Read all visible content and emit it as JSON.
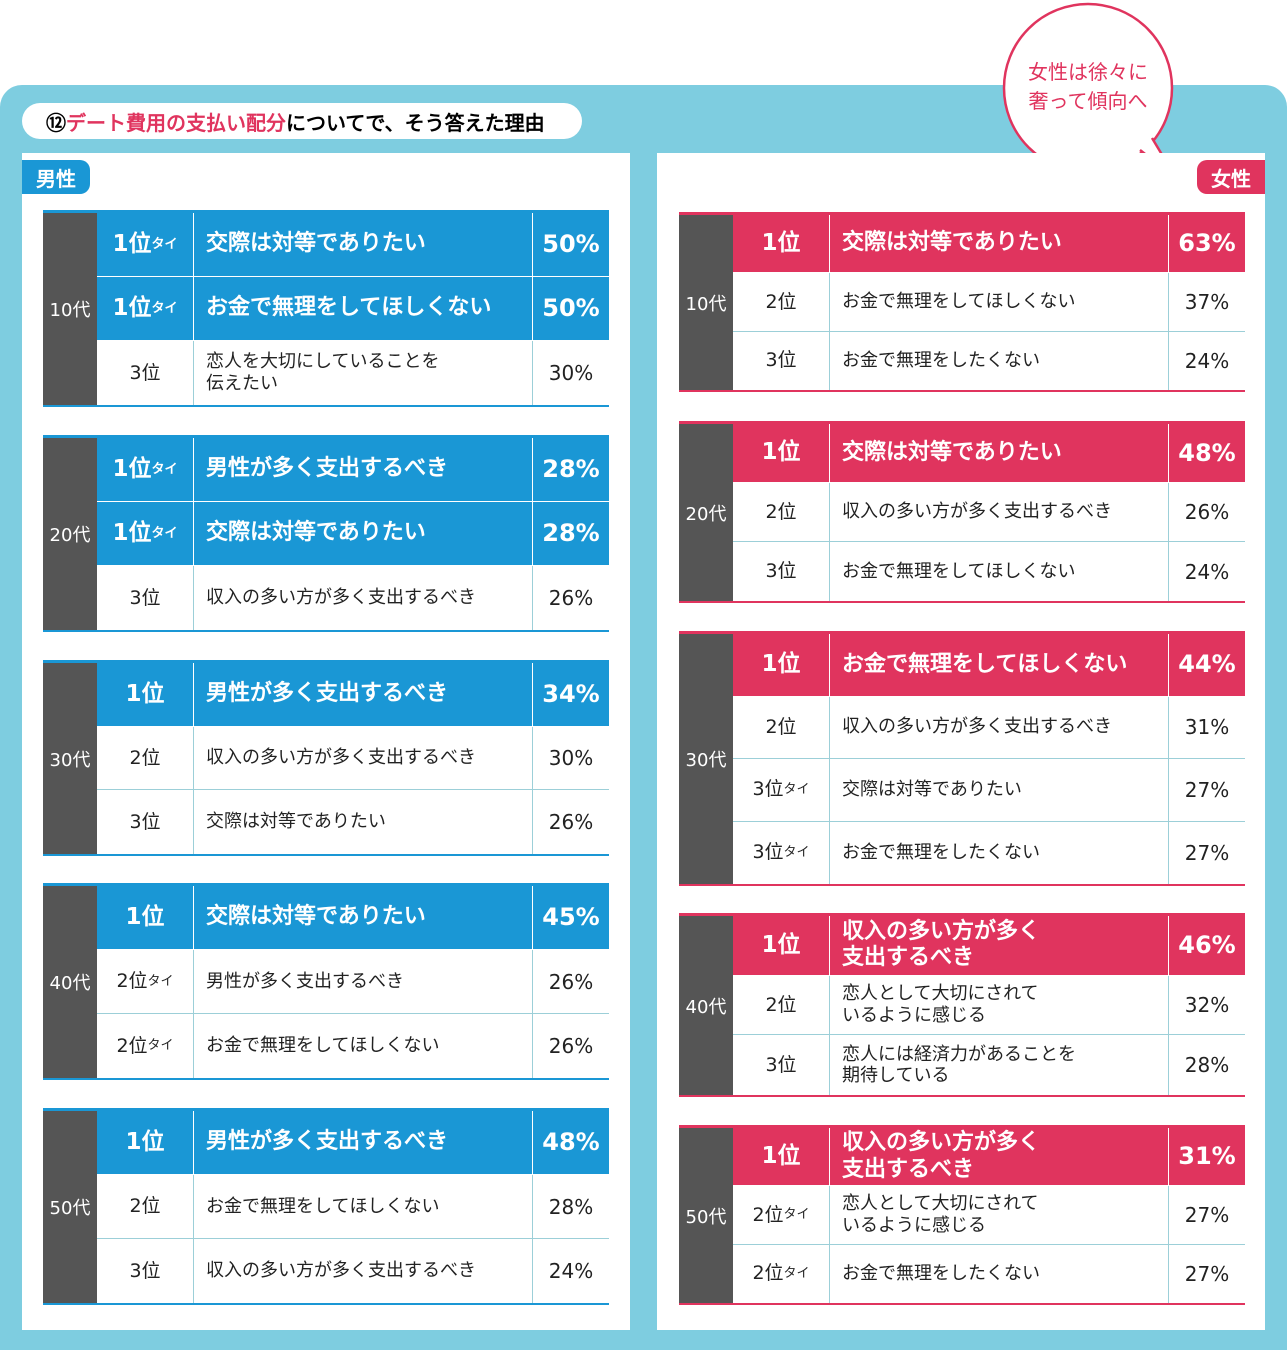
{
  "header": {
    "number": "⑫",
    "title_highlight": "デート費用の支払い配分",
    "title_rest": "についてで、そう答えた理由"
  },
  "callout": "女性は徐々に\n奢って傾向へ",
  "panels": [
    {
      "label": "男性",
      "groups": [
        {
          "age": "10代",
          "rows": [
            {
              "rank": "1位",
              "tie": "タイ",
              "reason": "交際は対等でありたい",
              "pct": "50%",
              "top": true
            },
            {
              "rank": "1位",
              "tie": "タイ",
              "reason": "お金で無理をしてほしくない",
              "pct": "50%",
              "top": true
            },
            {
              "rank": "3位",
              "reason": "恋人を大切にしていることを\n伝えたい",
              "pct": "30%"
            }
          ]
        },
        {
          "age": "20代",
          "rows": [
            {
              "rank": "1位",
              "tie": "タイ",
              "reason": "男性が多く支出するべき",
              "pct": "28%",
              "top": true
            },
            {
              "rank": "1位",
              "tie": "タイ",
              "reason": "交際は対等でありたい",
              "pct": "28%",
              "top": true
            },
            {
              "rank": "3位",
              "reason": "収入の多い方が多く支出するべき",
              "pct": "26%"
            }
          ]
        },
        {
          "age": "30代",
          "rows": [
            {
              "rank": "1位",
              "reason": "男性が多く支出するべき",
              "pct": "34%",
              "top": true
            },
            {
              "rank": "2位",
              "reason": "収入の多い方が多く支出するべき",
              "pct": "30%"
            },
            {
              "rank": "3位",
              "reason": "交際は対等でありたい",
              "pct": "26%"
            }
          ]
        },
        {
          "age": "40代",
          "rows": [
            {
              "rank": "1位",
              "reason": "交際は対等でありたい",
              "pct": "45%",
              "top": true
            },
            {
              "rank": "2位",
              "tie": "タイ",
              "reason": "男性が多く支出するべき",
              "pct": "26%"
            },
            {
              "rank": "2位",
              "tie": "タイ",
              "reason": "お金で無理をしてほしくない",
              "pct": "26%"
            }
          ]
        },
        {
          "age": "50代",
          "rows": [
            {
              "rank": "1位",
              "reason": "男性が多く支出するべき",
              "pct": "48%",
              "top": true
            },
            {
              "rank": "2位",
              "reason": "お金で無理をしてほしくない",
              "pct": "28%"
            },
            {
              "rank": "3位",
              "reason": "収入の多い方が多く支出するべき",
              "pct": "24%"
            }
          ]
        }
      ]
    },
    {
      "label": "女性",
      "groups": [
        {
          "age": "10代",
          "rows": [
            {
              "rank": "1位",
              "reason": "交際は対等でありたい",
              "pct": "63%",
              "top": true
            },
            {
              "rank": "2位",
              "reason": "お金で無理をしてほしくない",
              "pct": "37%"
            },
            {
              "rank": "3位",
              "reason": "お金で無理をしたくない",
              "pct": "24%"
            }
          ]
        },
        {
          "age": "20代",
          "rows": [
            {
              "rank": "1位",
              "reason": "交際は対等でありたい",
              "pct": "48%",
              "top": true
            },
            {
              "rank": "2位",
              "reason": "収入の多い方が多く支出するべき",
              "pct": "26%"
            },
            {
              "rank": "3位",
              "reason": "お金で無理をしてほしくない",
              "pct": "24%"
            }
          ]
        },
        {
          "age": "30代",
          "rows": [
            {
              "rank": "1位",
              "reason": "お金で無理をしてほしくない",
              "pct": "44%",
              "top": true
            },
            {
              "rank": "2位",
              "reason": "収入の多い方が多く支出するべき",
              "pct": "31%"
            },
            {
              "rank": "3位",
              "tie": "タイ",
              "reason": "交際は対等でありたい",
              "pct": "27%"
            },
            {
              "rank": "3位",
              "tie": "タイ",
              "reason": "お金で無理をしたくない",
              "pct": "27%"
            }
          ]
        },
        {
          "age": "40代",
          "rows": [
            {
              "rank": "1位",
              "reason": "収入の多い方が多く\n支出するべき",
              "pct": "46%",
              "top": true
            },
            {
              "rank": "2位",
              "reason": "恋人として大切にされて\nいるように感じる",
              "pct": "32%"
            },
            {
              "rank": "3位",
              "reason": "恋人には経済力があることを\n期待している",
              "pct": "28%"
            }
          ]
        },
        {
          "age": "50代",
          "rows": [
            {
              "rank": "1位",
              "reason": "収入の多い方が多く\n支出するべき",
              "pct": "31%",
              "top": true
            },
            {
              "rank": "2位",
              "tie": "タイ",
              "reason": "恋人として大切にされて\nいるように感じる",
              "pct": "27%"
            },
            {
              "rank": "2位",
              "tie": "タイ",
              "reason": "お金で無理をしたくない",
              "pct": "27%"
            }
          ]
        }
      ]
    }
  ]
}
